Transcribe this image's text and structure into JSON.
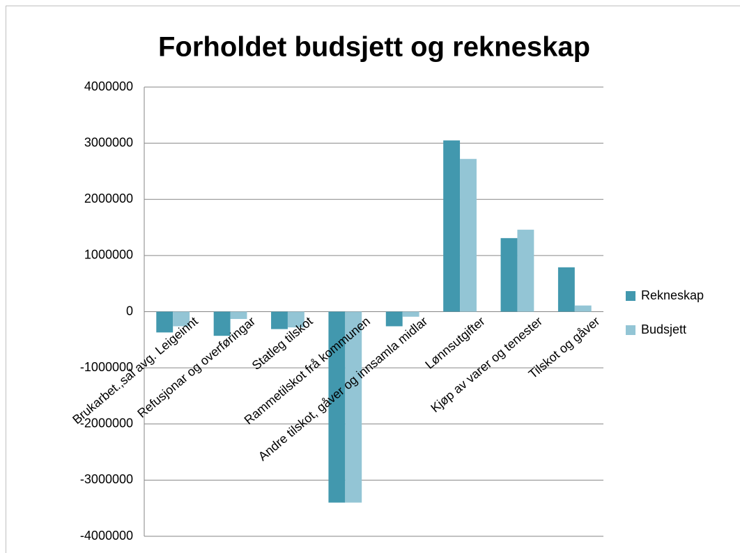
{
  "chart_data": {
    "type": "bar",
    "title": "Forholdet budsjett og rekneskap",
    "categories": [
      "Brukarbet.,sal avg. Leigeinnt",
      "Refusjonar og overføringar",
      "Statleg tilskot",
      "Rammetilskot frå kommunen",
      "Andre tilskot, gåver og innsamla midlar",
      "Lønnsutgifter",
      "Kjøp av varer og tenester",
      "Tilskot og gåver"
    ],
    "series": [
      {
        "name": "Rekneskap",
        "color": "#4298ae",
        "values": [
          -370000,
          -430000,
          -310000,
          -3400000,
          -260000,
          3050000,
          1310000,
          790000
        ]
      },
      {
        "name": "Budsjett",
        "color": "#93c5d5",
        "values": [
          -260000,
          -130000,
          -280000,
          -3400000,
          -90000,
          2720000,
          1460000,
          110000
        ]
      }
    ],
    "ylim": [
      -4000000,
      4000000
    ],
    "yticks": [
      -4000000,
      -3000000,
      -2000000,
      -1000000,
      0,
      1000000,
      2000000,
      3000000,
      4000000
    ],
    "grid": true,
    "legend": "right"
  }
}
